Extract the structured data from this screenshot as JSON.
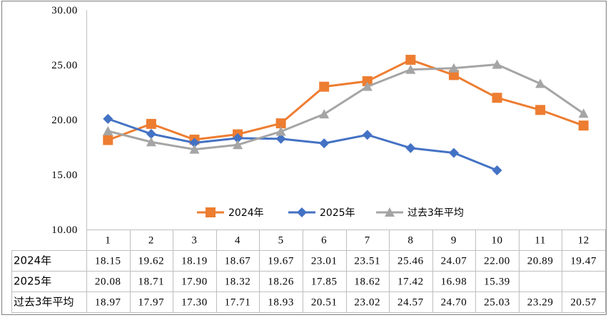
{
  "chart_data": {
    "type": "line",
    "title": "",
    "xlabel": "",
    "ylabel": "",
    "ylim": [
      10,
      30
    ],
    "y_ticks": [
      "10.00",
      "15.00",
      "20.00",
      "25.00",
      "30.00"
    ],
    "y_tick_values": [
      10,
      15,
      20,
      25,
      30
    ],
    "categories": [
      "1",
      "2",
      "3",
      "4",
      "5",
      "6",
      "7",
      "8",
      "9",
      "10",
      "11",
      "12"
    ],
    "legend_position": "bottom-center inside plot",
    "grid": "vertical category dividers",
    "series": [
      {
        "name": "2024年",
        "color": "#ED7D31",
        "marker": "square",
        "values": [
          18.15,
          19.62,
          18.19,
          18.67,
          19.67,
          23.01,
          23.51,
          25.46,
          24.07,
          22.0,
          20.89,
          19.47
        ],
        "labels": [
          "18.15",
          "19.62",
          "18.19",
          "18.67",
          "19.67",
          "23.01",
          "23.51",
          "25.46",
          "24.07",
          "22.00",
          "20.89",
          "19.47"
        ]
      },
      {
        "name": "2025年",
        "color": "#4472C4",
        "marker": "diamond",
        "values": [
          20.08,
          18.71,
          17.9,
          18.32,
          18.26,
          17.85,
          18.62,
          17.42,
          16.98,
          15.39,
          null,
          null
        ],
        "labels": [
          "20.08",
          "18.71",
          "17.90",
          "18.32",
          "18.26",
          "17.85",
          "18.62",
          "17.42",
          "16.98",
          "15.39",
          "",
          ""
        ]
      },
      {
        "name": "过去3年平均",
        "color": "#A5A5A5",
        "marker": "triangle",
        "values": [
          18.97,
          17.97,
          17.3,
          17.71,
          18.93,
          20.51,
          23.02,
          24.57,
          24.7,
          25.03,
          23.29,
          20.57
        ],
        "labels": [
          "18.97",
          "17.97",
          "17.30",
          "17.71",
          "18.93",
          "20.51",
          "23.02",
          "24.57",
          "24.70",
          "25.03",
          "23.29",
          "20.57"
        ]
      }
    ]
  }
}
